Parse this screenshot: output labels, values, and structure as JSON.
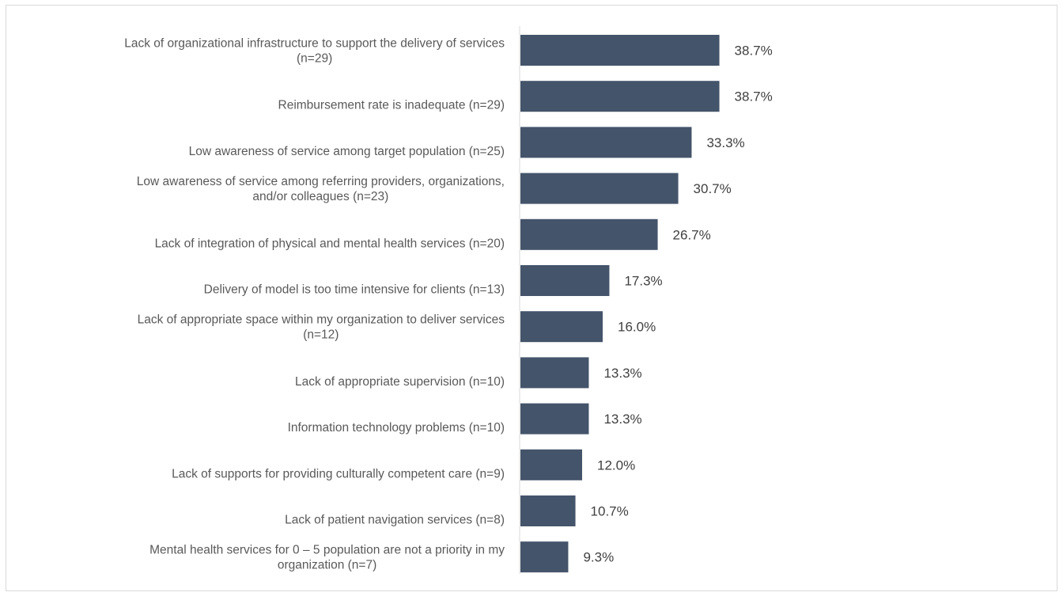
{
  "chart_data": {
    "type": "bar",
    "orientation": "horizontal",
    "bar_color": "#44546a",
    "categories": [
      [
        "Lack of organizational infrastructure to support the delivery of services",
        "(n=29)"
      ],
      [
        "Reimbursement rate is inadequate (n=29)"
      ],
      [
        "Low awareness of service among target population (n=25)"
      ],
      [
        "Low awareness of service among referring providers, organizations,",
        "and/or colleagues (n=23)"
      ],
      [
        "Lack of integration of physical and mental health services (n=20)"
      ],
      [
        "Delivery of model is too time intensive for clients (n=13)"
      ],
      [
        "Lack of appropriate space within my organization to deliver services",
        "(n=12)"
      ],
      [
        "Lack of appropriate supervision (n=10)"
      ],
      [
        "Information technology problems (n=10)"
      ],
      [
        "Lack of supports for providing culturally competent care (n=9)"
      ],
      [
        "Lack of patient navigation services (n=8)"
      ],
      [
        "Mental health services for 0 – 5 population are not a priority in my",
        "organization (n=7)"
      ]
    ],
    "values": [
      38.7,
      38.7,
      33.3,
      30.7,
      26.7,
      17.3,
      16.0,
      13.3,
      13.3,
      12.0,
      10.7,
      9.3
    ],
    "value_labels": [
      "38.7%",
      "38.7%",
      "33.3%",
      "30.7%",
      "26.7%",
      "17.3%",
      "16.0%",
      "13.3%",
      "13.3%",
      "12.0%",
      "10.7%",
      "9.3%"
    ],
    "xlim": [
      0,
      100
    ],
    "grid": false,
    "legend": "none"
  }
}
